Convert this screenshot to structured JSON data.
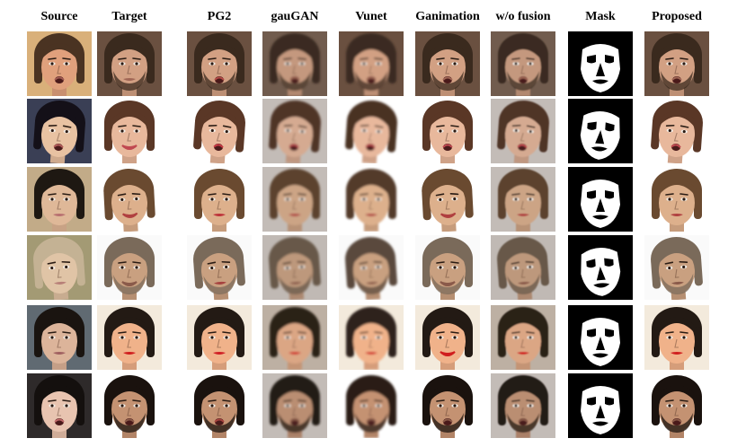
{
  "columns": [
    {
      "key": "source",
      "label": "Source"
    },
    {
      "key": "target",
      "label": "Target"
    },
    {
      "key": "pg2",
      "label": "PG2"
    },
    {
      "key": "gaugan",
      "label": "gauGAN"
    },
    {
      "key": "vunet",
      "label": "Vunet"
    },
    {
      "key": "ganimation",
      "label": "Ganimation"
    },
    {
      "key": "wo_fusion",
      "label": "w/o fusion"
    },
    {
      "key": "mask",
      "label": "Mask"
    },
    {
      "key": "proposed",
      "label": "Proposed"
    }
  ],
  "rows": [
    {
      "source": {
        "bg": "#d9b07a",
        "skin": "#e0a07c",
        "hair": "#4a3322",
        "lips": "#a05a52",
        "mouth": "open",
        "tilt": 0
      },
      "target": {
        "bg": "#6a5040",
        "skin": "#d2a083",
        "hair": "#3a2a1e",
        "lips": "#a06655",
        "beard": true,
        "tilt": 0
      }
    },
    {
      "source": {
        "bg": "#3a3f55",
        "skin": "#e8c2a2",
        "hair": "#141018",
        "lips": "#b05a58",
        "mouth": "open",
        "tilt": 4
      },
      "target": {
        "bg": "#ffffff",
        "skin": "#e8b89c",
        "hair": "#5a3726",
        "lips": "#c04850",
        "mouth": "smile",
        "tilt": 0
      }
    },
    {
      "source": {
        "bg": "#c2ab88",
        "skin": "#dfb898",
        "hair": "#1e1812",
        "lips": "#b87070",
        "mouth": "closed",
        "tilt": 0
      },
      "target": {
        "bg": "#ffffff",
        "skin": "#ddb08c",
        "hair": "#6a4a30",
        "lips": "#b04040",
        "mouth": "smile",
        "tilt": -3
      }
    },
    {
      "source": {
        "bg": "#a39a74",
        "skin": "#e0c4a6",
        "hair": "#c4b294",
        "lips": "#b88078",
        "mouth": "closed",
        "tilt": -4
      },
      "target": {
        "bg": "#fafafa",
        "skin": "#c9a080",
        "hair": "#7a6a5a",
        "lips": "#8a5a4a",
        "beard": true,
        "mouth": "smile",
        "tilt": 0
      }
    },
    {
      "source": {
        "bg": "#606a72",
        "skin": "#dcb49a",
        "hair": "#1a1410",
        "lips": "#a06060",
        "mouth": "closed",
        "tilt": 0
      },
      "target": {
        "bg": "#f3eadc",
        "skin": "#f0b28a",
        "hair": "#231a14",
        "lips": "#d01e1e",
        "mouth": "closed",
        "tilt": 0
      }
    },
    {
      "source": {
        "bg": "#2e2a2a",
        "skin": "#e8c4b0",
        "hair": "#14100e",
        "lips": "#c06a6a",
        "mouth": "open",
        "tilt": 0
      },
      "target": {
        "bg": "#ffffff",
        "skin": "#c49272",
        "hair": "#1a120e",
        "lips": "#8a5a48",
        "beard": true,
        "mouth": "open",
        "tilt": 0
      }
    }
  ]
}
